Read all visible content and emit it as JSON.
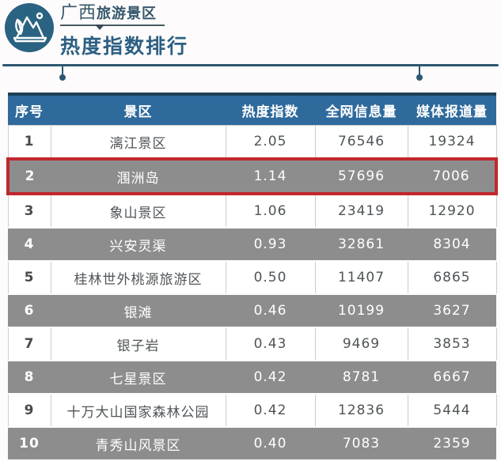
{
  "brand": {
    "region": "广西",
    "line1_suffix": "旅游景区",
    "line2": "热度指数排行"
  },
  "table": {
    "headers": [
      "序号",
      "景区",
      "热度指数",
      "全网信息量",
      "媒体报道量"
    ],
    "rows": [
      {
        "rank": "1",
        "name": "漓江景区",
        "heat": "2.05",
        "info": "76546",
        "media": "19324",
        "shade": "white",
        "highlighted": false
      },
      {
        "rank": "2",
        "name": "涠洲岛",
        "heat": "1.14",
        "info": "57696",
        "media": "7006",
        "shade": "gray",
        "highlighted": true
      },
      {
        "rank": "3",
        "name": "象山景区",
        "heat": "1.06",
        "info": "23419",
        "media": "12920",
        "shade": "white",
        "highlighted": false
      },
      {
        "rank": "4",
        "name": "兴安灵渠",
        "heat": "0.93",
        "info": "32861",
        "media": "8304",
        "shade": "gray",
        "highlighted": false
      },
      {
        "rank": "5",
        "name": "桂林世外桃源旅游区",
        "heat": "0.50",
        "info": "11407",
        "media": "6865",
        "shade": "white",
        "highlighted": false
      },
      {
        "rank": "6",
        "name": "银滩",
        "heat": "0.46",
        "info": "10199",
        "media": "3627",
        "shade": "gray",
        "highlighted": false
      },
      {
        "rank": "7",
        "name": "银子岩",
        "heat": "0.43",
        "info": "9469",
        "media": "3853",
        "shade": "white",
        "highlighted": false
      },
      {
        "rank": "8",
        "name": "七星景区",
        "heat": "0.42",
        "info": "8781",
        "media": "6667",
        "shade": "gray",
        "highlighted": false
      },
      {
        "rank": "9",
        "name": "十万大山国家森林公园",
        "heat": "0.42",
        "info": "12836",
        "media": "5444",
        "shade": "white",
        "highlighted": false
      },
      {
        "rank": "10",
        "name": "青秀山风景区",
        "heat": "0.40",
        "info": "7083",
        "media": "2359",
        "shade": "gray",
        "highlighted": false
      }
    ]
  },
  "colors": {
    "header_blue": "#2f6a9c",
    "header_top_border": "#1d4158",
    "row_gray": "#8d8d8d",
    "highlight_red": "#c1272d",
    "rule_navy": "#2d5872",
    "title_blue": "#2c5f83",
    "logo_circle": "#2a6282"
  },
  "chart_data": {
    "type": "table",
    "title": "广西旅游景区热度指数排行",
    "columns": [
      "序号",
      "景区",
      "热度指数",
      "全网信息量",
      "媒体报道量"
    ],
    "rows": [
      [
        1,
        "漓江景区",
        2.05,
        76546,
        19324
      ],
      [
        2,
        "涠洲岛",
        1.14,
        57696,
        7006
      ],
      [
        3,
        "象山景区",
        1.06,
        23419,
        12920
      ],
      [
        4,
        "兴安灵渠",
        0.93,
        32861,
        8304
      ],
      [
        5,
        "桂林世外桃源旅游区",
        0.5,
        11407,
        6865
      ],
      [
        6,
        "银滩",
        0.46,
        10199,
        3627
      ],
      [
        7,
        "银子岩",
        0.43,
        9469,
        3853
      ],
      [
        8,
        "七星景区",
        0.42,
        8781,
        6667
      ],
      [
        9,
        "十万大山国家森林公园",
        0.42,
        12836,
        5444
      ],
      [
        10,
        "青秀山风景区",
        0.4,
        7083,
        2359
      ]
    ],
    "highlighted_row_rank": 2,
    "layout": {
      "zebra": "even rows gray",
      "highlight": "red box around rank 2"
    }
  }
}
